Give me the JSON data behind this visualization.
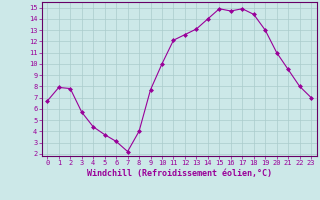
{
  "x": [
    0,
    1,
    2,
    3,
    4,
    5,
    6,
    7,
    8,
    9,
    10,
    11,
    12,
    13,
    14,
    15,
    16,
    17,
    18,
    19,
    20,
    21,
    22,
    23
  ],
  "y": [
    6.7,
    7.9,
    7.8,
    5.7,
    4.4,
    3.7,
    3.1,
    2.2,
    4.0,
    7.7,
    10.0,
    12.1,
    12.6,
    13.1,
    14.0,
    14.9,
    14.7,
    14.9,
    14.4,
    13.0,
    11.0,
    9.5,
    8.0,
    7.0
  ],
  "line_color": "#990099",
  "marker": "D",
  "marker_size": 2,
  "background_color": "#cce8e8",
  "grid_color": "#aacccc",
  "xlabel": "Windchill (Refroidissement éolien,°C)",
  "xlabel_color": "#990099",
  "tick_color": "#990099",
  "axis_color": "#660066",
  "xlim": [
    -0.5,
    23.5
  ],
  "ylim": [
    1.8,
    15.5
  ],
  "yticks": [
    2,
    3,
    4,
    5,
    6,
    7,
    8,
    9,
    10,
    11,
    12,
    13,
    14,
    15
  ],
  "xticks": [
    0,
    1,
    2,
    3,
    4,
    5,
    6,
    7,
    8,
    9,
    10,
    11,
    12,
    13,
    14,
    15,
    16,
    17,
    18,
    19,
    20,
    21,
    22,
    23
  ],
  "tick_fontsize": 5.0,
  "xlabel_fontsize": 6.0
}
